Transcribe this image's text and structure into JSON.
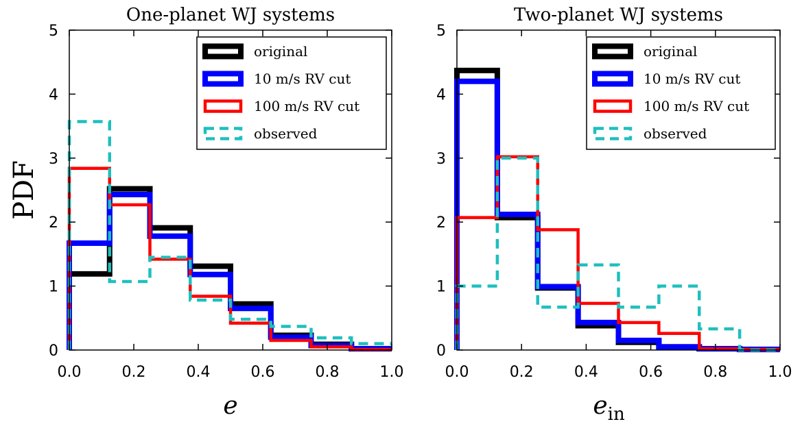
{
  "chart_data": [
    {
      "type": "histogram-step",
      "title": "One-planet WJ systems",
      "xlabel": "e",
      "xlabel_sub": "",
      "ylabel": "PDF",
      "xlim": [
        0,
        1
      ],
      "ylim": [
        0,
        5
      ],
      "xticks": [
        "0.0",
        "0.2",
        "0.4",
        "0.6",
        "0.8",
        "1.0"
      ],
      "yticks": [
        "0",
        "1",
        "2",
        "3",
        "4",
        "5"
      ],
      "bin_edges": [
        0,
        0.125,
        0.25,
        0.375,
        0.5,
        0.625,
        0.75,
        0.875,
        1.0
      ],
      "legend_position": "top-right",
      "series": [
        {
          "name": "original",
          "color": "#000000",
          "style": "solid",
          "width": "thick",
          "values": [
            1.19,
            2.52,
            1.91,
            1.31,
            0.72,
            0.23,
            0.09,
            0.02
          ]
        },
        {
          "name": "10 m/s RV cut",
          "color": "#0000ff",
          "style": "solid",
          "width": "thick",
          "values": [
            1.67,
            2.43,
            1.78,
            1.18,
            0.65,
            0.2,
            0.07,
            0.02
          ]
        },
        {
          "name": "100 m/s RV cut",
          "color": "#ff0000",
          "style": "solid",
          "width": "medium",
          "values": [
            2.84,
            2.27,
            1.42,
            0.84,
            0.42,
            0.15,
            0.05,
            0.01
          ]
        },
        {
          "name": "observed",
          "color": "#1fbfbf",
          "style": "dashed",
          "width": "medium",
          "values": [
            3.57,
            1.07,
            1.45,
            0.78,
            0.48,
            0.37,
            0.19,
            0.1
          ]
        }
      ]
    },
    {
      "type": "histogram-step",
      "title": "Two-planet WJ systems",
      "xlabel": "e",
      "xlabel_sub": "in",
      "ylabel": "",
      "xlim": [
        0,
        1
      ],
      "ylim": [
        0,
        5
      ],
      "xticks": [
        "0.0",
        "0.2",
        "0.4",
        "0.6",
        "0.8",
        "1.0"
      ],
      "yticks": [
        "0",
        "1",
        "2",
        "3",
        "4",
        "5"
      ],
      "bin_edges": [
        0,
        0.125,
        0.25,
        0.375,
        0.5,
        0.625,
        0.75,
        0.875,
        1.0
      ],
      "legend_position": "top-right",
      "series": [
        {
          "name": "original",
          "color": "#000000",
          "style": "solid",
          "width": "thick",
          "values": [
            4.37,
            2.07,
            0.97,
            0.38,
            0.12,
            0.05,
            0.02,
            0.01
          ]
        },
        {
          "name": "10 m/s RV cut",
          "color": "#0000ff",
          "style": "solid",
          "width": "thick",
          "values": [
            4.2,
            2.12,
            0.99,
            0.43,
            0.15,
            0.05,
            0.02,
            0.01
          ]
        },
        {
          "name": "100 m/s RV cut",
          "color": "#ff0000",
          "style": "solid",
          "width": "medium",
          "values": [
            2.07,
            3.02,
            1.88,
            0.73,
            0.43,
            0.26,
            0.02,
            0.01
          ]
        },
        {
          "name": "observed",
          "color": "#1fbfbf",
          "style": "dashed",
          "width": "medium",
          "values": [
            1.0,
            3.0,
            0.67,
            1.33,
            0.67,
            1.0,
            0.33,
            0.0
          ]
        }
      ]
    }
  ]
}
